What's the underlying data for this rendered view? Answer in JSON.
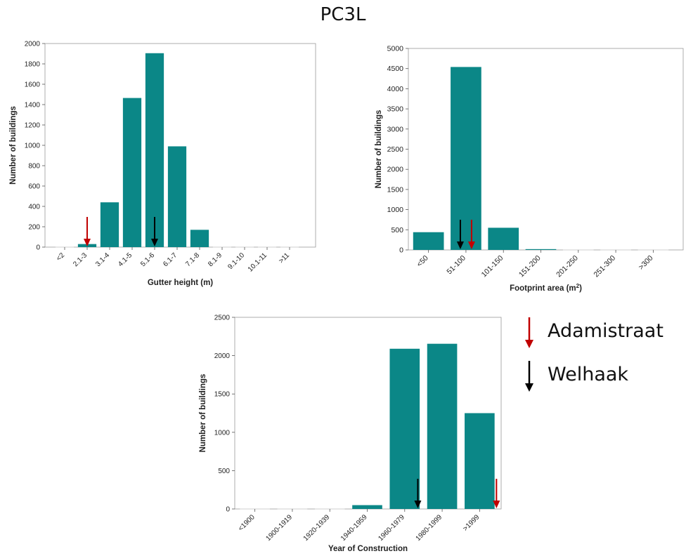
{
  "page": {
    "title": "PC3L"
  },
  "colors": {
    "bar": "#0b8787",
    "axis": "#555555",
    "red_arrow": "#c00000",
    "black_arrow": "#000000"
  },
  "legend": [
    {
      "label": "Adamistraat",
      "color": "#c00000",
      "icon": "down-arrow-icon"
    },
    {
      "label": "Welhaak",
      "color": "#000000",
      "icon": "down-arrow-icon"
    }
  ],
  "chart_data": [
    {
      "type": "bar",
      "xlabel": "Gutter height (m)",
      "ylabel": "Number of buildings",
      "categories": [
        "<2",
        "2.1-3",
        "3.1-4",
        "4.1-5",
        "5.1-6",
        "6.1-7",
        "7.1-8",
        "8.1-9",
        "9.1-10",
        "10.1-11",
        ">11"
      ],
      "values": [
        0,
        30,
        440,
        1465,
        1905,
        990,
        170,
        0,
        0,
        0,
        0
      ],
      "ylim": [
        0,
        2000
      ],
      "yticks": [
        0,
        200,
        400,
        600,
        800,
        1000,
        1200,
        1400,
        1600,
        1800,
        2000
      ],
      "grid": false,
      "markers": [
        {
          "label": "Adamistraat",
          "category": "2.1-3",
          "color": "#c00000"
        },
        {
          "label": "Welhaak",
          "category": "5.1-6",
          "color": "#000000"
        }
      ]
    },
    {
      "type": "bar",
      "xlabel": "Footprint area (m",
      "xlabel_sup": "2",
      "xlabel_suffix": ")",
      "ylabel": "Number of buildings",
      "categories": [
        "<50",
        "51-100",
        "101-150",
        "151-200",
        "201-250",
        "251-300",
        ">300"
      ],
      "values": [
        440,
        4540,
        550,
        20,
        0,
        0,
        0
      ],
      "ylim": [
        0,
        5000
      ],
      "yticks": [
        0,
        500,
        1000,
        1500,
        2000,
        2500,
        3000,
        3500,
        4000,
        4500,
        5000
      ],
      "grid": false,
      "markers": [
        {
          "label": "Welhaak",
          "category": "51-100",
          "offset": -0.15,
          "color": "#000000"
        },
        {
          "label": "Adamistraat",
          "category": "51-100",
          "offset": 0.15,
          "color": "#c00000"
        }
      ]
    },
    {
      "type": "bar",
      "xlabel": "Year of Construction",
      "ylabel": "Number of buildings",
      "categories": [
        "<1900",
        "1900-1919",
        "1920-1939",
        "1940-1959",
        "1960-1979",
        "1980-1999",
        ">1999"
      ],
      "values": [
        0,
        0,
        0,
        50,
        2090,
        2155,
        1250
      ],
      "ylim": [
        0,
        2500
      ],
      "yticks": [
        0,
        500,
        1000,
        1500,
        2000,
        2500
      ],
      "grid": false,
      "markers": [
        {
          "label": "Welhaak",
          "category": "1960-1979",
          "offset": 0.35,
          "color": "#000000"
        },
        {
          "label": "Adamistraat",
          "category": ">1999",
          "offset": 0.45,
          "color": "#c00000"
        }
      ]
    }
  ]
}
